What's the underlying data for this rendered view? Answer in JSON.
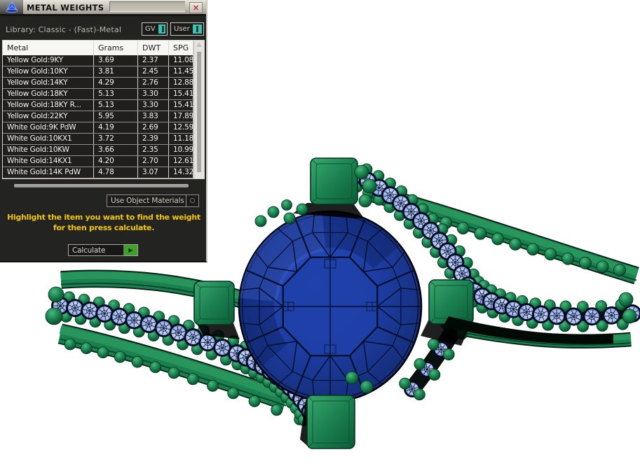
{
  "panel": {
    "title": "METAL WEIGHTS",
    "close": "×",
    "library_label": "Library: Classic - (Fast)-Metal",
    "gv_button": "GV",
    "user_button": "User",
    "table": {
      "columns": [
        "Metal",
        "Grams",
        "DWT",
        "SPG"
      ],
      "rows": [
        [
          "Yellow Gold:9KY",
          "3.69",
          "2.37",
          "11.08"
        ],
        [
          "Yellow Gold:10KY",
          "3.81",
          "2.45",
          "11.45"
        ],
        [
          "Yellow Gold:14KY",
          "4.29",
          "2.76",
          "12.88"
        ],
        [
          "Yellow Gold:18KY",
          "5.13",
          "3.30",
          "15.41"
        ],
        [
          "Yellow Gold:18KY R...",
          "5.13",
          "3.30",
          "15.41"
        ],
        [
          "Yellow Gold:22KY",
          "5.95",
          "3.83",
          "17.89"
        ],
        [
          "White Gold:9K PdW",
          "4.19",
          "2.69",
          "12.59"
        ],
        [
          "White Gold:10KX1",
          "3.72",
          "2.39",
          "11.18"
        ],
        [
          "White Gold:10KW",
          "3.66",
          "2.35",
          "10.99"
        ],
        [
          "White Gold:14KX1",
          "4.20",
          "2.70",
          "12.61"
        ],
        [
          "White Gold:14K PdW",
          "4.78",
          "3.07",
          "14.32"
        ]
      ]
    },
    "materials_value": "Use Object Materials",
    "materials_icon": "○",
    "instruction_line1": "Highlight the item you want to find the weight",
    "instruction_line2": "for then press calculate.",
    "calculate_label": "Calculate",
    "calculate_icon": "▶"
  },
  "viewport": {
    "model": "bypass ring, round blue center stone, four square prongs, bead-set pale blue accent stones",
    "colors": {
      "metal_green": "#1b8050",
      "metal_green_light": "#3aa96e",
      "metal_green_dark": "#0b5c37",
      "metal_outline": "#03170d",
      "stone_blue": "#1d3da4",
      "stone_blue_light": "#2a4dbd",
      "stone_blue_dark": "#16307f",
      "stone_line": "#04102c",
      "accent_gem": "#b4c4f0",
      "accent_gem_rim": "#050e26",
      "teal_indicator": "#40bfb3",
      "instruction_yellow": "#f2c60f",
      "calc_arrow_green": "#3fa02b",
      "red_close": "#b23131"
    }
  }
}
